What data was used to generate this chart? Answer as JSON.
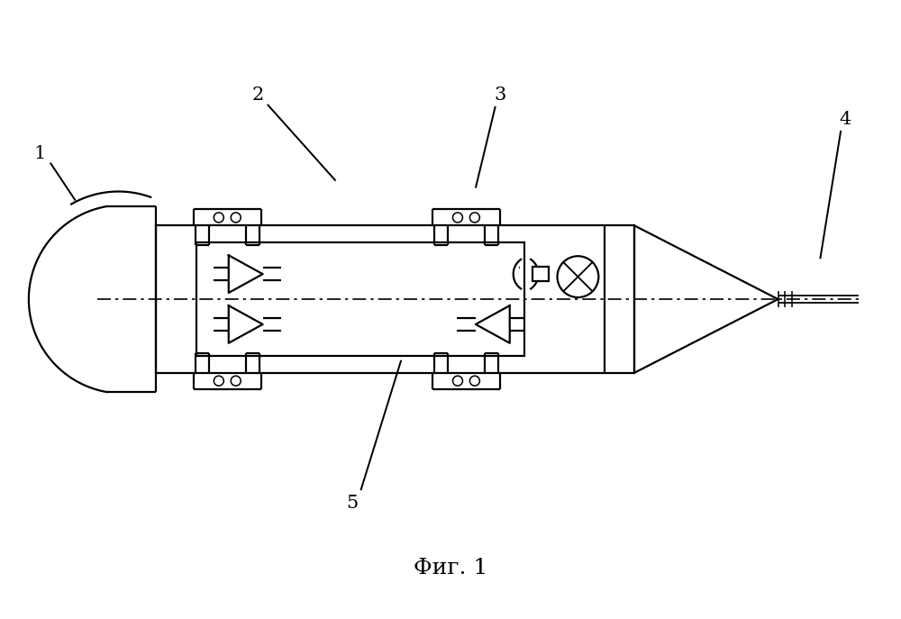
{
  "title": "Фиг. 1",
  "title_fontsize": 18,
  "background_color": "#ffffff",
  "line_color": "#000000",
  "line_width": 1.6,
  "fig_width": 10.0,
  "fig_height": 6.87
}
